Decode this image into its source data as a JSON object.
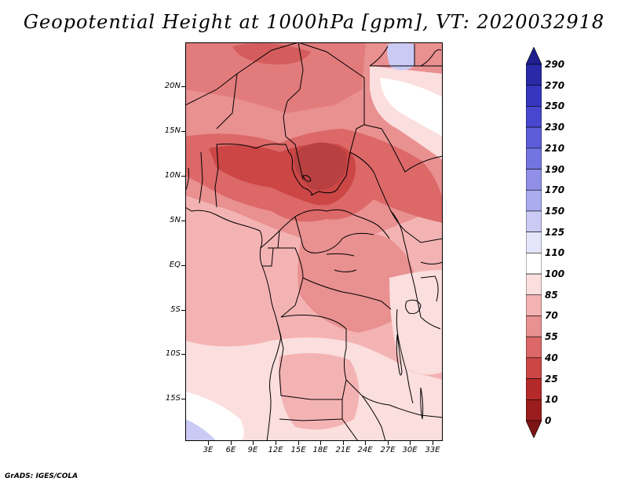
{
  "title": "Geopotential Height at 1000hPa [gpm], VT: 2020032918",
  "credit": "GrADS: IGES/COLA",
  "y_axis": {
    "labels": [
      "20N",
      "15N",
      "10N",
      "5N",
      "EQ",
      "5S",
      "10S",
      "15S"
    ],
    "lat_values": [
      20,
      15,
      10,
      5,
      0,
      -5,
      -10,
      -15
    ],
    "range_lat": [
      -20,
      24.5
    ]
  },
  "x_axis": {
    "labels": [
      "3E",
      "6E",
      "9E",
      "12E",
      "15E",
      "18E",
      "21E",
      "24E",
      "27E",
      "30E",
      "33E"
    ],
    "lon_values": [
      3,
      6,
      9,
      12,
      15,
      18,
      21,
      24,
      27,
      30,
      33
    ],
    "range_lon": [
      0,
      34.4
    ]
  },
  "colorbar": {
    "labels": [
      "290",
      "270",
      "250",
      "230",
      "210",
      "190",
      "170",
      "150",
      "125",
      "110",
      "100",
      "85",
      "70",
      "55",
      "40",
      "25",
      "10",
      "0"
    ],
    "colors": [
      "#1f1f8f",
      "#2a2aa8",
      "#3636bf",
      "#4747cf",
      "#5d5dd9",
      "#7474e0",
      "#8f8fe8",
      "#ababf0",
      "#cacaf5",
      "#e6e6fa",
      "#ffffff",
      "#fbdede",
      "#f4b3b3",
      "#e99090",
      "#dc6868",
      "#cc4646",
      "#b42a2a",
      "#9a1c1c",
      "#7d1414"
    ]
  },
  "legend_icon": "colorbar-arrow-icon"
}
